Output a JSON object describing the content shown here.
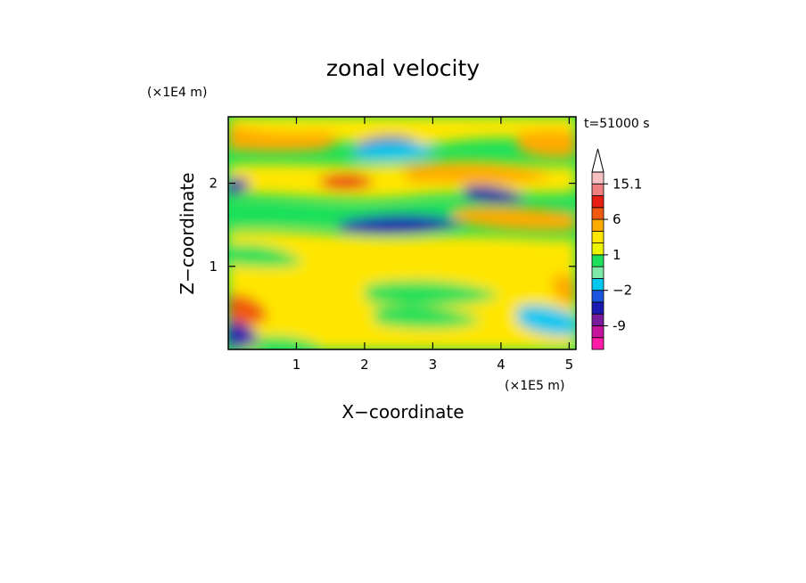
{
  "chart_data": {
    "type": "heatmap",
    "title": "zonal velocity",
    "xlabel": "X−coordinate",
    "ylabel": "Z−coordinate",
    "x_scale_note": "(×1E5 m)",
    "y_scale_note": "(×1E4 m)",
    "time_label": "t=51000 s",
    "xlim": [
      0,
      5.1
    ],
    "ylim": [
      0,
      2.8
    ],
    "x_ticks": [
      1,
      2,
      3,
      4,
      5
    ],
    "y_ticks": [
      1,
      2
    ],
    "colorbar": {
      "levels": [
        -16.1,
        -13.1,
        -9,
        -6,
        -4,
        -2,
        -1,
        0,
        1,
        2,
        3,
        6,
        9,
        12.1,
        15.1
      ],
      "labels": [
        "-9",
        "−2",
        "1",
        "6",
        "15.1"
      ],
      "colors": [
        "#ff1aa8",
        "#c4149c",
        "#7a1a9c",
        "#1a1ab0",
        "#1a55e0",
        "#00c8f0",
        "#7fe8a8",
        "#1ee05a",
        "#ecf500",
        "#ffe600",
        "#ffaa00",
        "#f05a10",
        "#e61e14",
        "#f08080",
        "#f8c0c0"
      ],
      "extend": "max"
    },
    "grid": false
  }
}
